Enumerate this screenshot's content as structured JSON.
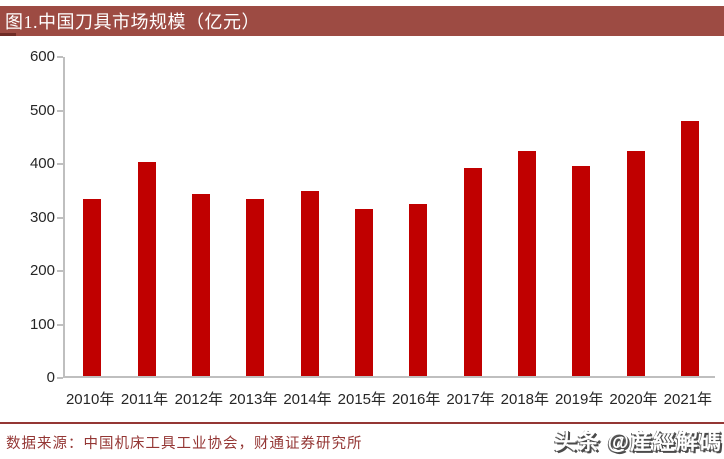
{
  "title_bar": {
    "label": "图1.中国刀具市场规模（亿元）"
  },
  "chart_data": {
    "type": "bar",
    "title": "图1.中国刀具市场规模（亿元）",
    "categories": [
      "2010年",
      "2011年",
      "2012年",
      "2013年",
      "2014年",
      "2015年",
      "2016年",
      "2017年",
      "2018年",
      "2019年",
      "2020年",
      "2021年"
    ],
    "values": [
      330,
      400,
      340,
      330,
      345,
      312,
      321,
      388,
      421,
      393,
      421,
      477
    ],
    "xlabel": "",
    "ylabel": "",
    "ylim": [
      0,
      600
    ],
    "yticks": [
      0,
      100,
      200,
      300,
      400,
      500,
      600
    ],
    "bar_color": "#C00000",
    "axis_color": "#BFBFBF",
    "grid": false,
    "legend": "none"
  },
  "footer": {
    "source": "数据来源：中国机床工具工业协会，财通证券研究所"
  },
  "watermark": {
    "text": "头条 @産經解碼"
  }
}
